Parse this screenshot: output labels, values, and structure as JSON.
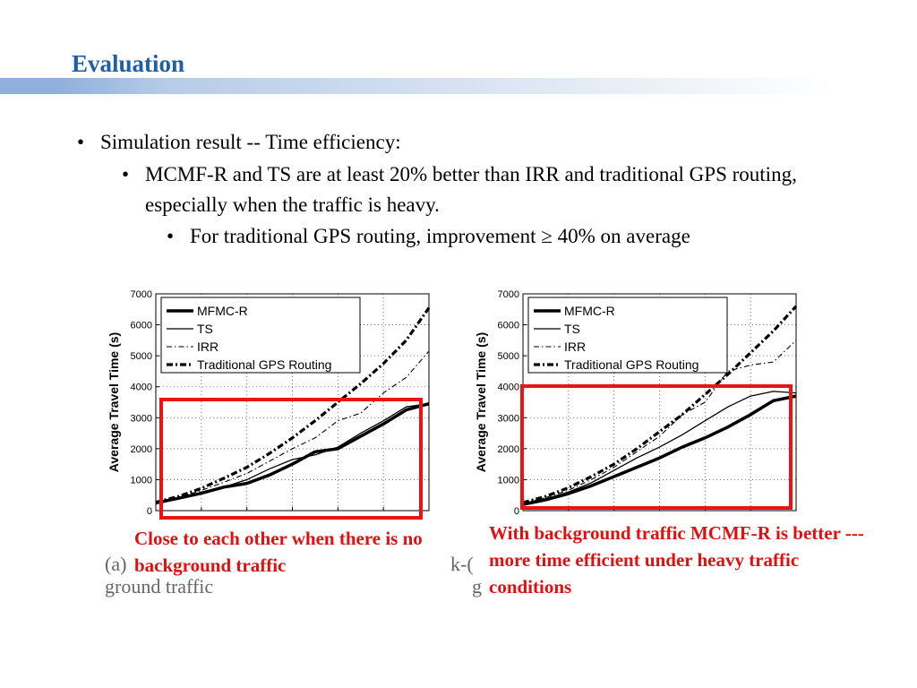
{
  "slide": {
    "title": "Evaluation",
    "bullets": [
      "Simulation result -- Time efficiency:",
      "MCMF-R and TS are at least 20% better than IRR and traditional GPS routing, especially when the traffic is heavy.",
      "For traditional GPS routing, improvement ≥ 40% on average"
    ],
    "bullet_glyph": "•"
  },
  "annotations": {
    "left": "Close to each other when there is no background traffic",
    "right": "With background traffic MCMF-R is better --- more time efficient under heavy traffic conditions"
  },
  "captions": {
    "left_line1": "(a)",
    "left_line2": "ground traffic",
    "right_line1": "k-(",
    "right_line2": "g"
  },
  "colors": {
    "title": "#1f5fa6",
    "highlight_box": "#e81515",
    "annotation": "#e01010"
  },
  "chart_data": [
    {
      "type": "line",
      "ylabel": "Average Travel Time (s)",
      "xlabel": "",
      "ylim": [
        0,
        7000
      ],
      "yticks": [
        0,
        1000,
        2000,
        3000,
        4000,
        5000,
        6000,
        7000
      ],
      "grid": true,
      "legend_position": "top-left",
      "x": [
        0,
        1,
        2,
        3,
        4,
        5,
        6,
        7,
        8,
        9,
        10,
        11,
        12
      ],
      "series": [
        {
          "name": "MFMC-R",
          "style": "thick-solid",
          "values": [
            250,
            400,
            560,
            760,
            880,
            1150,
            1500,
            1900,
            2000,
            2400,
            2800,
            3250,
            3450
          ]
        },
        {
          "name": "TS",
          "style": "solid",
          "values": [
            230,
            380,
            550,
            760,
            1000,
            1350,
            1650,
            1800,
            2050,
            2500,
            2900,
            3350,
            3450
          ]
        },
        {
          "name": "IRR",
          "style": "dash-dot",
          "values": [
            260,
            430,
            650,
            920,
            1200,
            1600,
            2000,
            2350,
            2900,
            3150,
            3800,
            4300,
            5150
          ]
        },
        {
          "name": "Traditional GPS Routing",
          "style": "thick-dash-dot",
          "values": [
            270,
            460,
            720,
            1050,
            1400,
            1850,
            2350,
            2900,
            3500,
            4100,
            4750,
            5500,
            6550
          ]
        }
      ]
    },
    {
      "type": "line",
      "ylabel": "Average Travel Time (s)",
      "xlabel": "",
      "ylim": [
        0,
        7000
      ],
      "yticks": [
        0,
        1000,
        2000,
        3000,
        4000,
        5000,
        6000,
        7000
      ],
      "grid": true,
      "legend_position": "top-left",
      "x": [
        0,
        1,
        2,
        3,
        4,
        5,
        6,
        7,
        8,
        9,
        10,
        11,
        12
      ],
      "series": [
        {
          "name": "MFMC-R",
          "style": "thick-solid",
          "values": [
            200,
            350,
            550,
            800,
            1100,
            1400,
            1700,
            2050,
            2350,
            2700,
            3100,
            3550,
            3700
          ]
        },
        {
          "name": "TS",
          "style": "solid",
          "values": [
            220,
            380,
            600,
            900,
            1300,
            1700,
            2050,
            2450,
            2900,
            3350,
            3700,
            3850,
            3800
          ]
        },
        {
          "name": "IRR",
          "style": "dash-dot",
          "values": [
            240,
            420,
            660,
            1000,
            1400,
            1900,
            2400,
            3100,
            3500,
            4500,
            4700,
            4800,
            5500
          ]
        },
        {
          "name": "Traditional GPS Routing",
          "style": "thick-dash-dot",
          "values": [
            260,
            460,
            740,
            1100,
            1500,
            2000,
            2550,
            3100,
            3750,
            4400,
            5100,
            5800,
            6600
          ]
        }
      ]
    }
  ]
}
